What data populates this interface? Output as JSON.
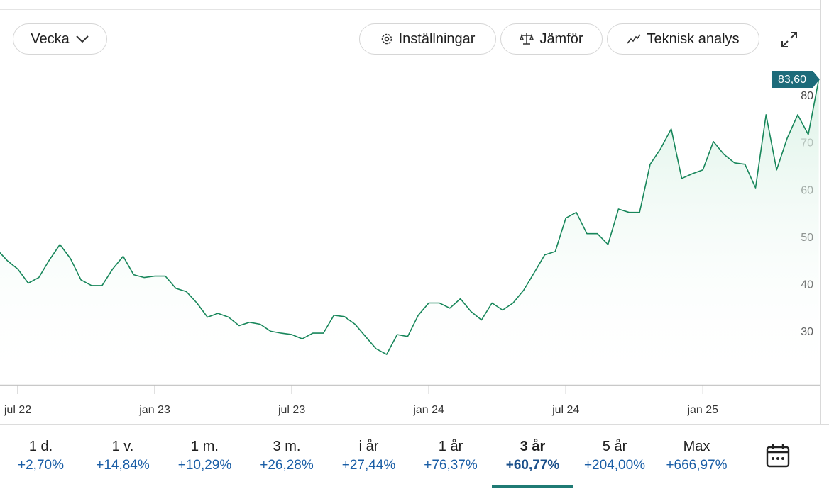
{
  "toolbar": {
    "interval": "Vecka",
    "buttons": [
      "Inställningar",
      "Jämför",
      "Teknisk analys"
    ]
  },
  "chart_data": {
    "type": "line",
    "categories": [
      null,
      null,
      "jul 22",
      null,
      null,
      null,
      null,
      null,
      null,
      null,
      null,
      null,
      null,
      null,
      null,
      "jan 23",
      null,
      null,
      null,
      null,
      null,
      null,
      null,
      null,
      null,
      null,
      null,
      null,
      "jul 23",
      null,
      null,
      null,
      null,
      null,
      null,
      null,
      null,
      null,
      null,
      null,
      null,
      "jan 24",
      null,
      null,
      null,
      null,
      null,
      null,
      null,
      null,
      null,
      null,
      null,
      null,
      "jul 24",
      null,
      null,
      null,
      null,
      null,
      null,
      null,
      null,
      null,
      null,
      null,
      null,
      "jan 25",
      null,
      null,
      null,
      null,
      null,
      null,
      null,
      null,
      null,
      null,
      null
    ],
    "values": [
      47.6,
      45.2,
      43.4,
      40.4,
      41.6,
      45.3,
      48.6,
      45.6,
      41.1,
      39.9,
      39.9,
      43.4,
      46.1,
      42.2,
      41.6,
      41.9,
      41.9,
      39.3,
      38.6,
      36.2,
      33.2,
      34,
      33.2,
      31.4,
      32.1,
      31.7,
      30.2,
      29.8,
      29.5,
      28.6,
      29.8,
      29.8,
      33.6,
      33.3,
      31.7,
      29.1,
      26.5,
      25.3,
      29.5,
      29.1,
      33.6,
      36.2,
      36.2,
      35.1,
      37.1,
      34.4,
      32.6,
      36.2,
      34.7,
      36.2,
      38.9,
      42.6,
      46.4,
      47.1,
      54.2,
      55.4,
      50.9,
      50.9,
      48.6,
      56.1,
      55.4,
      55.4,
      65.6,
      68.9,
      73.1,
      62.6,
      63.6,
      64.4,
      70.4,
      67.7,
      65.9,
      65.6,
      60.6,
      76.1,
      64.4,
      71.1,
      76.1,
      71.9,
      83.6
    ],
    "value_labels": [
      null,
      null,
      null,
      null,
      null,
      null,
      null,
      null,
      null,
      null,
      null,
      null,
      null,
      null,
      null,
      null,
      null,
      null,
      null,
      null,
      null,
      null,
      null,
      null,
      null,
      null,
      null,
      null,
      null,
      null,
      null,
      null,
      null,
      null,
      null,
      null,
      null,
      null,
      null,
      null,
      null,
      null,
      null,
      null,
      null,
      null,
      null,
      null,
      null,
      null,
      null,
      null,
      null,
      null,
      null,
      null,
      null,
      null,
      null,
      null,
      null,
      null,
      null,
      null,
      null,
      null,
      null,
      null,
      null,
      null,
      null,
      null,
      null,
      null,
      null,
      null,
      null,
      null,
      "83,60"
    ],
    "color": "#17865a",
    "ylim": [
      19,
      86
    ],
    "yticks": [
      30,
      40,
      50,
      60,
      70,
      80
    ],
    "grid": false
  },
  "periods": [
    {
      "label": "1 d.",
      "change": "+2,70%"
    },
    {
      "label": "1 v.",
      "change": "+14,84%"
    },
    {
      "label": "1 m.",
      "change": "+10,29%"
    },
    {
      "label": "3 m.",
      "change": "+26,28%"
    },
    {
      "label": "i år",
      "change": "+27,44%"
    },
    {
      "label": "1 år",
      "change": "+76,37%"
    },
    {
      "label": "3 år",
      "change": "+60,77%"
    },
    {
      "label": "5 år",
      "change": "+204,00%"
    },
    {
      "label": "Max",
      "change": "+666,97%"
    }
  ],
  "selected_period": 6
}
